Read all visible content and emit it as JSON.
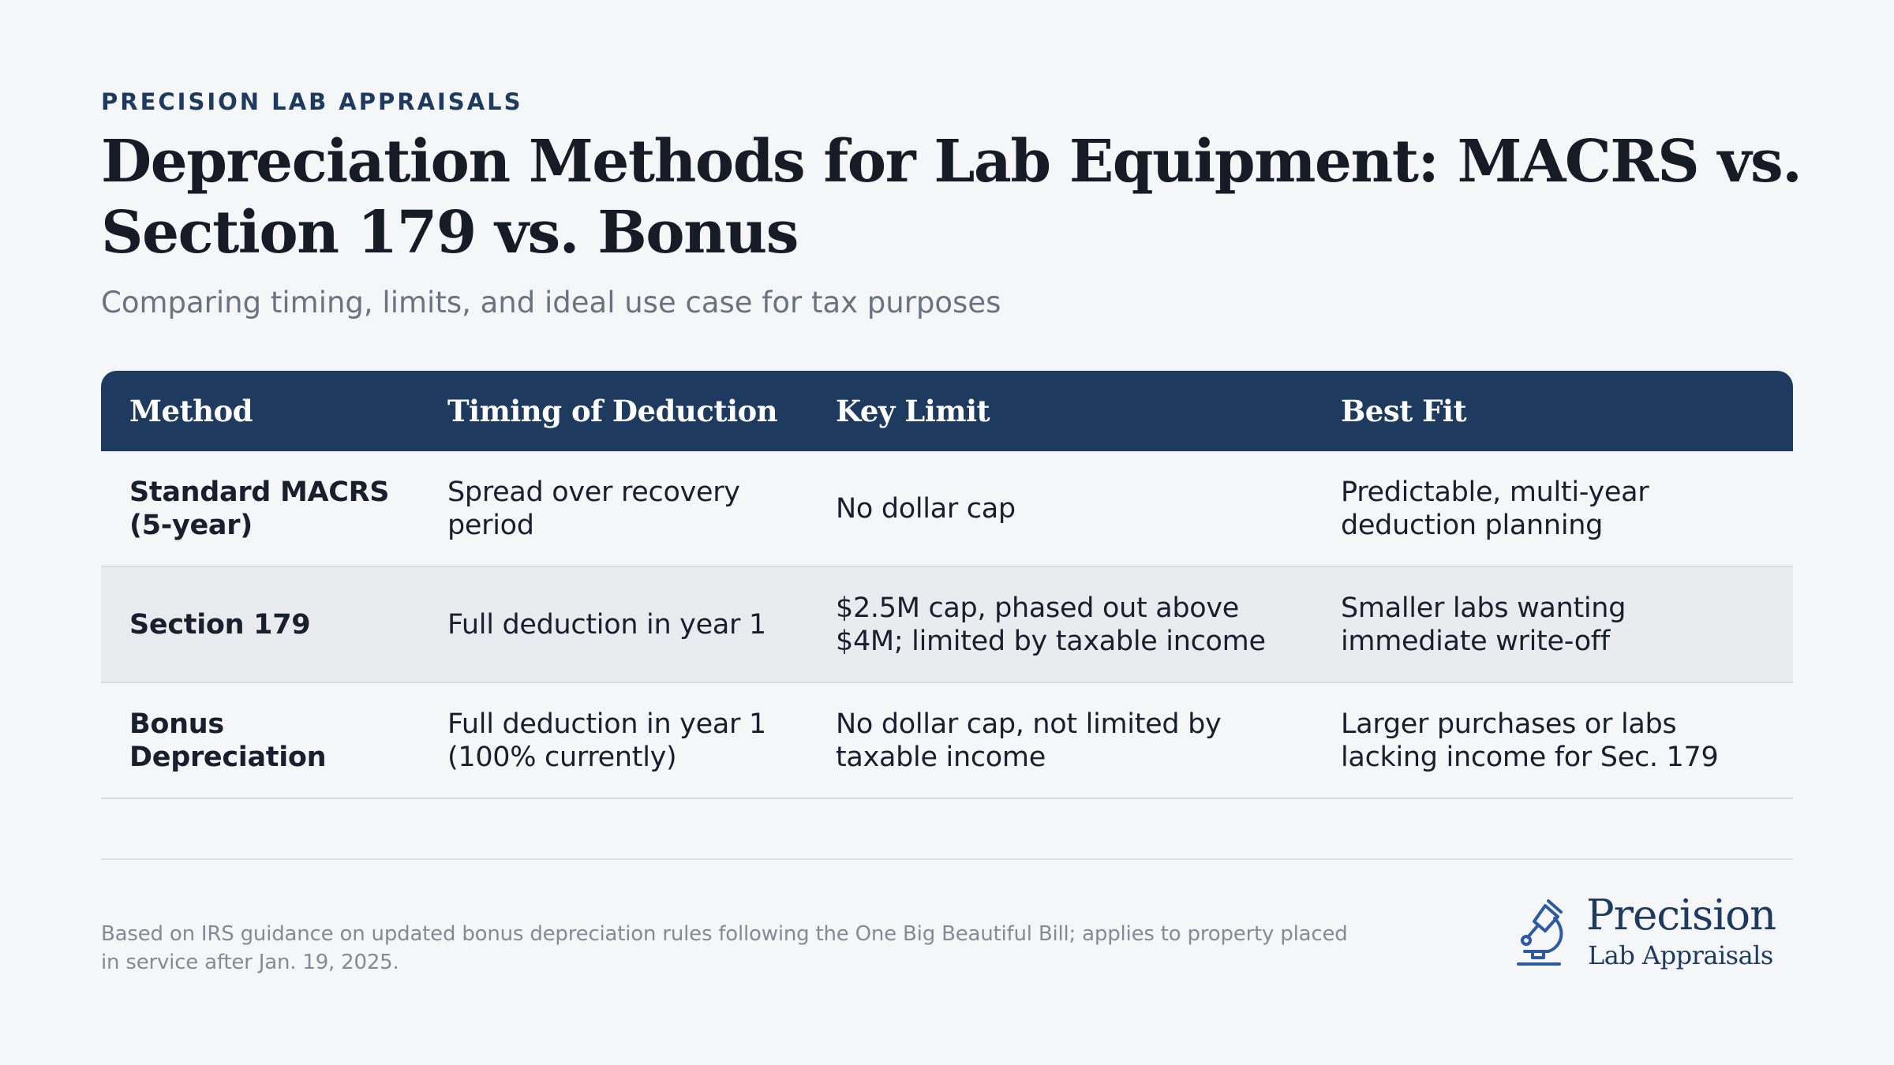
{
  "brand": {
    "eyebrow": "PRECISION LAB APPRAISALS",
    "logo_word": "Precision",
    "logo_sub": "Lab Appraisals",
    "logo_icon": "microscope-icon",
    "primary_color": "#1e3a5f"
  },
  "header": {
    "title": "Depreciation Methods for Lab Equipment: MACRS vs. Section 179 vs. Bonus",
    "subtitle": "Comparing timing, limits, and ideal use case for tax purposes"
  },
  "table": {
    "columns": [
      "Method",
      "Timing of Deduction",
      "Key Limit",
      "Best Fit"
    ],
    "rows": [
      {
        "method": "Standard MACRS (5-year)",
        "timing": "Spread over recovery period",
        "limit": "No dollar cap",
        "best_fit": "Predictable, multi-year deduction planning"
      },
      {
        "method": "Section 179",
        "timing": "Full deduction in year 1",
        "limit": "$2.5M cap, phased out above $4M; limited by taxable income",
        "best_fit": "Smaller labs wanting immediate write-off"
      },
      {
        "method": "Bonus Depreciation",
        "timing": "Full deduction in year 1 (100% currently)",
        "limit": "No dollar cap, not limited by taxable income",
        "best_fit": "Larger purchases or labs lacking income for Sec. 179"
      }
    ]
  },
  "footer": {
    "note": "Based on IRS guidance on updated bonus depreciation rules following the One Big Beautiful Bill; applies to property placed in service after Jan. 19, 2025."
  }
}
